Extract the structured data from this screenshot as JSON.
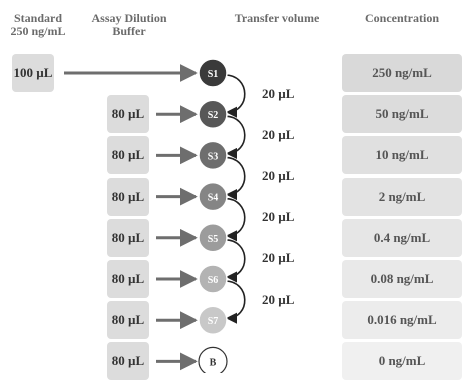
{
  "headers": {
    "standard_line1": "Standard",
    "standard_line2": "250 ng/mL",
    "buffer_line1": "Assay Dilution",
    "buffer_line2": "Buffer",
    "transfer": "Transfer volume",
    "concentration": "Concentration"
  },
  "standard_volume": "100 µL",
  "buffer_volumes": [
    "80 µL",
    "80 µL",
    "80 µL",
    "80 µL",
    "80 µL",
    "80 µL",
    "80 µL"
  ],
  "tubes": [
    {
      "label": "S1",
      "color": "#3a3a3a"
    },
    {
      "label": "S2",
      "color": "#575757"
    },
    {
      "label": "S3",
      "color": "#6e6e6e"
    },
    {
      "label": "S4",
      "color": "#858585"
    },
    {
      "label": "S5",
      "color": "#9c9c9c"
    },
    {
      "label": "S6",
      "color": "#b3b3b3"
    },
    {
      "label": "S7",
      "color": "#c8c8c8"
    },
    {
      "label": "B",
      "color": "#ffffff"
    }
  ],
  "transfer_volumes": [
    "20 µL",
    "20 µL",
    "20 µL",
    "20 µL",
    "20 µL",
    "20 µL"
  ],
  "concentrations": [
    "250 ng/mL",
    "50 ng/mL",
    "10 ng/mL",
    "2 ng/mL",
    "0.4 ng/mL",
    "0.08 ng/mL",
    "0.016 ng/mL",
    "0 ng/mL"
  ],
  "concentration_colors": [
    "#d9d9d9",
    "#dcdcdc",
    "#e0e0e0",
    "#e3e3e3",
    "#e6e6e6",
    "#e9e9e9",
    "#ececec",
    "#f0f0f0"
  ]
}
